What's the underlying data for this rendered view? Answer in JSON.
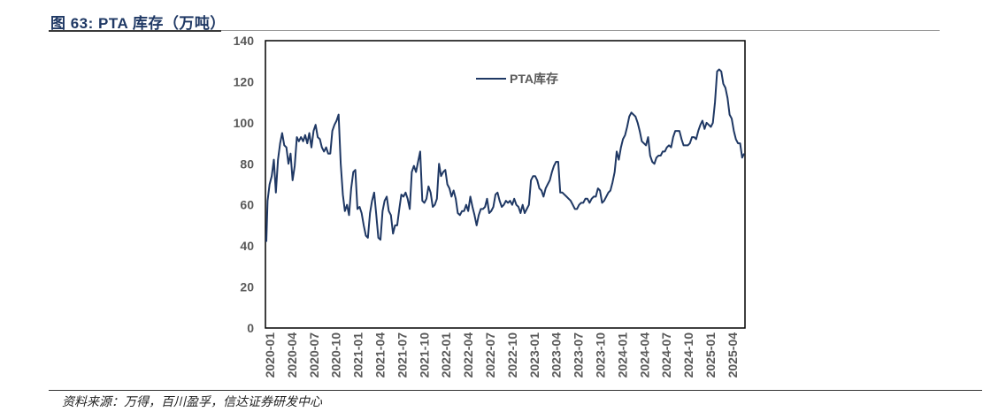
{
  "header": {
    "title": "图 63:  PTA 库存（万吨）"
  },
  "footer": {
    "source": "资料来源：万得，百川盈孚，信达证券研发中心"
  },
  "chart_data": {
    "type": "line",
    "title": "PTA 库存（万吨）",
    "xlabel": "",
    "ylabel": "",
    "ylim": [
      0,
      140
    ],
    "yticks": [
      "0",
      "20",
      "40",
      "60",
      "80",
      "100",
      "120",
      "140"
    ],
    "x_unit": "months since 2020-01",
    "xlim": [
      -0.6,
      64.6
    ],
    "xticks": [
      "2020-01",
      "2020-04",
      "2020-07",
      "2020-10",
      "2021-01",
      "2021-04",
      "2021-07",
      "2021-10",
      "2022-01",
      "2022-04",
      "2022-07",
      "2022-10",
      "2023-01",
      "2023-04",
      "2023-07",
      "2023-10",
      "2024-01",
      "2024-04",
      "2024-07",
      "2024-10",
      "2025-01",
      "2025-04"
    ],
    "grid": false,
    "legend_position": "top-center",
    "series": [
      {
        "name": "PTA库存",
        "color": "#1f3864",
        "values": [
          42,
          62,
          70,
          74,
          82,
          66,
          82,
          90,
          95,
          89,
          88,
          80,
          85,
          72,
          79,
          93,
          91,
          93,
          91,
          94,
          90,
          95,
          88,
          96,
          99,
          93,
          92,
          88,
          86,
          88,
          85,
          85,
          96,
          99,
          101,
          104,
          80,
          65,
          57,
          60,
          55,
          68,
          76,
          77,
          58,
          59,
          56,
          50,
          45,
          44,
          56,
          62,
          66,
          55,
          44,
          43,
          57,
          62,
          64,
          57,
          55,
          46,
          50,
          50,
          58,
          65,
          64,
          66,
          63,
          58,
          76,
          79,
          76,
          81,
          86,
          62,
          61,
          63,
          69,
          66,
          59,
          60,
          63,
          80,
          74,
          76,
          77,
          70,
          68,
          64,
          67,
          63,
          56,
          55,
          57,
          57,
          60,
          57,
          64,
          59,
          55,
          50,
          55,
          58,
          58,
          59,
          63,
          56,
          57,
          59,
          65,
          66,
          62,
          59,
          60,
          62,
          61,
          62,
          60,
          63,
          60,
          59,
          56,
          60,
          56,
          58,
          60,
          72,
          74,
          74,
          72,
          68,
          67,
          64,
          68,
          70,
          72,
          76,
          79,
          81,
          81,
          66,
          66,
          65,
          64,
          63,
          62,
          60,
          58,
          58,
          60,
          61,
          61,
          63,
          63,
          61,
          63,
          64,
          64,
          68,
          67,
          61,
          62,
          64,
          66,
          67,
          71,
          76,
          86,
          82,
          88,
          92,
          94,
          98,
          103,
          105,
          104,
          103,
          100,
          96,
          91,
          90,
          89,
          93,
          84,
          81,
          80,
          83,
          84,
          84,
          86,
          86,
          88,
          89,
          88,
          93,
          96,
          96,
          96,
          92,
          89,
          89,
          89,
          90,
          93,
          93,
          92,
          96,
          99,
          101,
          97,
          100,
          99,
          98,
          100,
          110,
          125,
          126,
          125,
          119,
          117,
          112,
          104,
          102,
          96,
          92,
          90,
          90,
          83,
          85
        ]
      }
    ]
  }
}
